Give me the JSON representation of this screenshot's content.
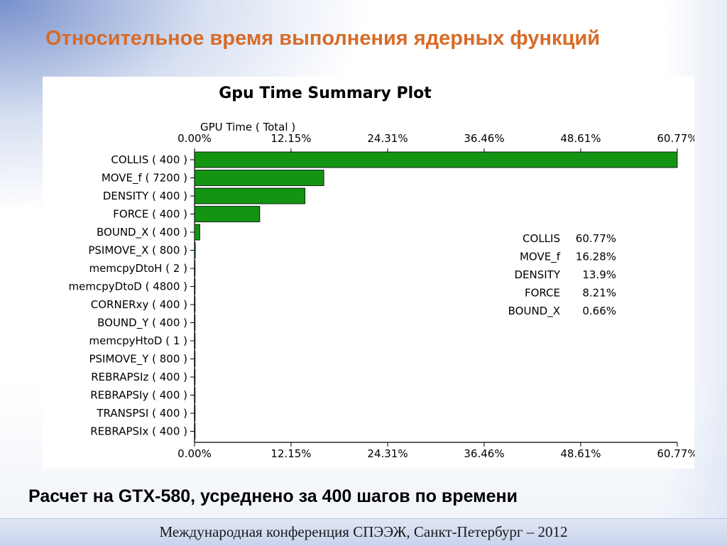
{
  "slide": {
    "title": "Относительное время выполнения ядерных функций",
    "caption": "Расчет на GTX-580, усреднено за 400 шагов по времени",
    "footer": "Международная конференция СПЭЭЖ, Санкт-Петербург – 2012"
  },
  "chart_data": {
    "type": "bar",
    "orientation": "horizontal",
    "title": "Gpu Time Summary Plot",
    "xlabel": "GPU Time ( Total )",
    "ylabel": "",
    "xlim": [
      0,
      60.77
    ],
    "x_ticks": [
      "0.00%",
      "12.15%",
      "24.31%",
      "36.46%",
      "48.61%",
      "60.77%"
    ],
    "x_tick_values": [
      0,
      12.15,
      24.31,
      36.46,
      48.61,
      60.77
    ],
    "bar_color": "#139413",
    "categories": [
      "COLLIS ( 400 )",
      "MOVE_f ( 7200 )",
      "DENSITY ( 400 )",
      "FORCE ( 400 )",
      "BOUND_X ( 400 )",
      "PSIMOVE_X ( 800 )",
      "memcpyDtoH ( 2 )",
      "memcpyDtoD ( 4800 )",
      "CORNERxy ( 400 )",
      "BOUND_Y ( 400 )",
      "memcpyHtoD ( 1 )",
      "PSIMOVE_Y ( 800 )",
      "REBRAPSIz ( 400 )",
      "REBRAPSIy ( 400 )",
      "TRANSPSI ( 400 )",
      "REBRAPSIx ( 400 )"
    ],
    "values": [
      60.77,
      16.28,
      13.9,
      8.21,
      0.66,
      0.1,
      0.05,
      0.05,
      0.05,
      0.05,
      0.03,
      0.03,
      0.03,
      0.03,
      0.03,
      0.03
    ],
    "legend": [
      {
        "name": "COLLIS",
        "value": "60.77%"
      },
      {
        "name": "MOVE_f",
        "value": "16.28%"
      },
      {
        "name": "DENSITY",
        "value": "13.9%"
      },
      {
        "name": "FORCE",
        "value": "8.21%"
      },
      {
        "name": "BOUND_X",
        "value": "0.66%"
      }
    ],
    "legend_position": "right-middle",
    "grid": false
  }
}
